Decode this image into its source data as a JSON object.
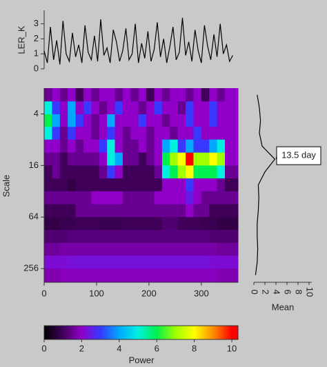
{
  "chart_data": [
    {
      "type": "line",
      "ylabel": "LER_K",
      "color": "#000000",
      "x": [
        0,
        6,
        12,
        18,
        24,
        30,
        36,
        42,
        48,
        54,
        60,
        66,
        72,
        78,
        84,
        90,
        96,
        102,
        108,
        114,
        120,
        126,
        132,
        138,
        144,
        150,
        156,
        162,
        168,
        174,
        180,
        186,
        192,
        198,
        204,
        210,
        216,
        222,
        228,
        234,
        240,
        246,
        252,
        258,
        264,
        270,
        276,
        282,
        288,
        294,
        300,
        306,
        312,
        318,
        324,
        330,
        336,
        342,
        348,
        354,
        360
      ],
      "values": [
        1.2,
        0.4,
        2.8,
        0.6,
        1.9,
        0.3,
        3.2,
        1.0,
        0.5,
        2.4,
        0.8,
        1.6,
        0.4,
        2.9,
        1.1,
        0.6,
        2.2,
        0.5,
        3.3,
        0.9,
        1.4,
        0.4,
        2.6,
        1.8,
        0.5,
        1.2,
        2.7,
        0.6,
        1.0,
        3.0,
        0.4,
        1.7,
        0.7,
        2.5,
        0.5,
        1.3,
        3.1,
        0.8,
        2.0,
        0.4,
        1.5,
        2.8,
        0.6,
        1.1,
        3.4,
        0.9,
        1.8,
        0.5,
        2.6,
        1.2,
        0.4,
        2.9,
        1.5,
        0.6,
        2.3,
        0.8,
        3.0,
        1.0,
        1.6,
        0.5,
        0.9
      ],
      "xlim": [
        0,
        370
      ],
      "ylim": [
        0,
        3.9
      ],
      "yticks": [
        0,
        1,
        2,
        3
      ]
    },
    {
      "type": "heatmap",
      "ylabel": "Scale",
      "log_y": true,
      "x": [
        7.5,
        22.5,
        37.5,
        52.5,
        67.5,
        82.5,
        97.5,
        112.5,
        127.5,
        142.5,
        157.5,
        172.5,
        187.5,
        202.5,
        217.5,
        232.5,
        247.5,
        262.5,
        277.5,
        292.5,
        307.5,
        322.5,
        337.5,
        352.5
      ],
      "y": [
        2.4,
        3.4,
        4.8,
        6.7,
        9.5,
        13.5,
        19,
        27,
        38,
        54,
        76,
        108,
        152,
        215,
        304
      ],
      "values": [
        [
          1.5,
          2,
          1.5,
          2,
          1,
          2,
          1.5,
          2,
          2,
          1.5,
          2,
          1.5,
          2,
          1,
          2,
          1.5,
          2,
          2,
          1.5,
          2,
          1,
          2,
          1.5,
          2
        ],
        [
          5,
          3,
          2,
          4,
          2,
          3,
          2,
          1.5,
          2,
          3,
          2,
          2,
          1.5,
          2,
          3,
          2,
          2,
          1.5,
          3,
          2,
          2,
          3,
          2,
          2
        ],
        [
          6,
          4,
          2,
          4,
          3,
          2,
          1.5,
          2,
          4,
          2,
          2,
          2,
          3,
          2,
          2,
          1.5,
          2,
          2,
          3,
          2,
          2,
          3,
          2,
          2
        ],
        [
          5,
          3,
          1.5,
          3,
          2,
          2,
          1.5,
          2,
          3,
          2,
          1.5,
          2,
          2,
          1.5,
          2,
          2,
          1.5,
          2,
          2,
          3,
          2,
          2,
          2,
          2
        ],
        [
          2,
          2,
          1.5,
          2,
          1.5,
          2,
          2,
          3,
          5,
          2,
          1.5,
          1.5,
          2,
          1.5,
          2,
          4,
          5,
          3,
          4,
          3,
          3,
          4,
          5,
          2
        ],
        [
          1.5,
          1.5,
          1,
          1.5,
          1.5,
          1.5,
          1.5,
          2,
          5,
          4,
          1.5,
          1.5,
          1,
          1.5,
          2,
          6,
          7,
          8,
          10,
          7,
          7,
          8,
          7,
          2
        ],
        [
          1,
          1.5,
          1,
          1,
          1,
          1,
          1,
          1.5,
          3,
          2,
          1,
          1,
          1,
          1,
          1.5,
          5,
          6,
          7,
          8,
          6,
          6,
          6,
          5,
          1.5
        ],
        [
          1,
          1,
          1,
          0.8,
          1,
          1,
          1,
          1,
          1,
          1,
          1,
          1,
          1,
          1,
          1,
          2,
          2,
          2,
          3,
          2,
          2,
          2,
          1.5,
          1
        ],
        [
          1.5,
          1.5,
          1.5,
          1.5,
          1.5,
          1.5,
          2,
          2,
          2,
          2,
          1.5,
          1.5,
          1.5,
          1.5,
          2,
          2,
          2,
          2,
          2.5,
          2,
          1.5,
          1.5,
          1.5,
          1.5
        ],
        [
          1,
          1,
          1,
          1,
          1.5,
          1.5,
          1.5,
          1.5,
          1.5,
          1.5,
          1.5,
          1.5,
          1.5,
          1.5,
          1.5,
          1.5,
          1.5,
          1.5,
          2,
          1.5,
          1.5,
          1,
          1,
          1
        ],
        [
          0.8,
          0.8,
          0.9,
          0.9,
          1,
          1,
          1,
          0.9,
          0.9,
          0.9,
          1,
          1,
          1,
          1,
          1,
          1.2,
          1.2,
          1,
          1,
          1,
          0.9,
          0.9,
          0.8,
          0.8
        ],
        [
          1.2,
          1.2,
          1.2,
          1.3,
          1.3,
          1.3,
          1.3,
          1.3,
          1.3,
          1.3,
          1.3,
          1.3,
          1.3,
          1.3,
          1.3,
          1.3,
          1.3,
          1.3,
          1.3,
          1.3,
          1.3,
          1.2,
          1.2,
          1.2
        ],
        [
          1.6,
          1.6,
          1.7,
          1.7,
          1.7,
          1.7,
          1.7,
          1.7,
          1.7,
          1.7,
          1.7,
          1.7,
          1.7,
          1.7,
          1.7,
          1.7,
          1.7,
          1.7,
          1.7,
          1.7,
          1.7,
          1.7,
          1.6,
          1.6
        ],
        [
          2.2,
          2.2,
          2.2,
          2.3,
          2.3,
          2.3,
          2.3,
          2.3,
          2.3,
          2.3,
          2.3,
          2.3,
          2.3,
          2.3,
          2.3,
          2.3,
          2.3,
          2.3,
          2.3,
          2.3,
          2.3,
          2.2,
          2.2,
          2.2
        ],
        [
          1.8,
          1.8,
          1.9,
          1.9,
          1.9,
          1.9,
          1.9,
          1.9,
          1.9,
          1.9,
          1.9,
          1.9,
          1.9,
          1.9,
          1.9,
          1.9,
          1.9,
          1.9,
          1.9,
          1.9,
          1.9,
          1.9,
          1.8,
          1.8
        ]
      ],
      "xlim": [
        0,
        370
      ],
      "ylim": [
        2,
        370
      ],
      "xticks": [
        0,
        100,
        200,
        300
      ],
      "yticks": [
        4,
        16,
        64,
        256
      ],
      "colors": [
        "#000000",
        "#40005a",
        "#9000c8",
        "#3838ff",
        "#00a8ff",
        "#00f0e0",
        "#00f050",
        "#a0ff00",
        "#ffff00",
        "#ff8c00",
        "#ff0000"
      ]
    },
    {
      "type": "profile",
      "xlabel": "Mean",
      "color": "#000000",
      "y": [
        2.4,
        3.4,
        4.8,
        6.7,
        9.5,
        13.5,
        19,
        27,
        38,
        54,
        76,
        108,
        152,
        215,
        304
      ],
      "values": [
        0.6,
        1.0,
        1.2,
        1.0,
        1.5,
        3.8,
        2.0,
        0.8,
        0.9,
        0.8,
        0.6,
        0.6,
        0.7,
        0.6,
        0.3
      ],
      "xlim": [
        0,
        10.5
      ],
      "xticks": [
        0,
        2,
        4,
        6,
        8,
        10
      ],
      "annotation": "13.5 day"
    },
    {
      "type": "colorbar",
      "xlabel": "Power",
      "xlim": [
        0,
        10.33
      ],
      "xticks": [
        0,
        2,
        4,
        6,
        8,
        10
      ]
    }
  ]
}
